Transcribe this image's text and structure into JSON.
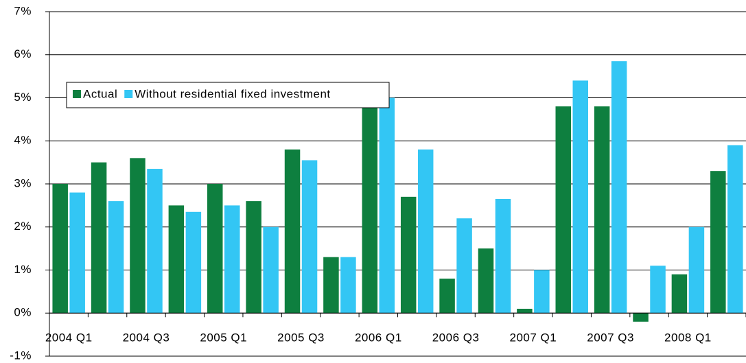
{
  "chart_data": {
    "type": "bar",
    "categories": [
      "2004 Q1",
      null,
      "2004 Q3",
      null,
      "2005 Q1",
      null,
      "2005 Q3",
      null,
      "2006 Q1",
      null,
      "2006 Q3",
      null,
      "2007 Q1",
      null,
      "2007 Q3",
      null,
      "2008 Q1",
      null
    ],
    "series": [
      {
        "name": "Actual",
        "color": "#0e7f3f",
        "values": [
          3.0,
          3.5,
          3.6,
          2.5,
          3.0,
          2.6,
          3.8,
          1.3,
          4.8,
          2.7,
          0.8,
          1.5,
          0.1,
          4.8,
          4.8,
          -0.2,
          0.9,
          3.3
        ]
      },
      {
        "name": "Without residential fixed investment",
        "color": "#33c6f4",
        "values": [
          2.8,
          2.6,
          3.35,
          2.35,
          2.5,
          2.0,
          3.55,
          1.3,
          5.0,
          3.8,
          2.2,
          2.65,
          1.0,
          5.4,
          5.85,
          1.1,
          2.0,
          3.9
        ]
      }
    ],
    "ylim": [
      -1,
      7
    ],
    "yticks": [
      {
        "value": -1,
        "label": "-1%"
      },
      {
        "value": 0,
        "label": "0%"
      },
      {
        "value": 1,
        "label": "1%"
      },
      {
        "value": 2,
        "label": "2%"
      },
      {
        "value": 3,
        "label": "3%"
      },
      {
        "value": 4,
        "label": "4%"
      },
      {
        "value": 5,
        "label": "5%"
      },
      {
        "value": 6,
        "label": "6%"
      },
      {
        "value": 7,
        "label": "7%"
      }
    ],
    "grid": true,
    "legend": "top-left"
  }
}
